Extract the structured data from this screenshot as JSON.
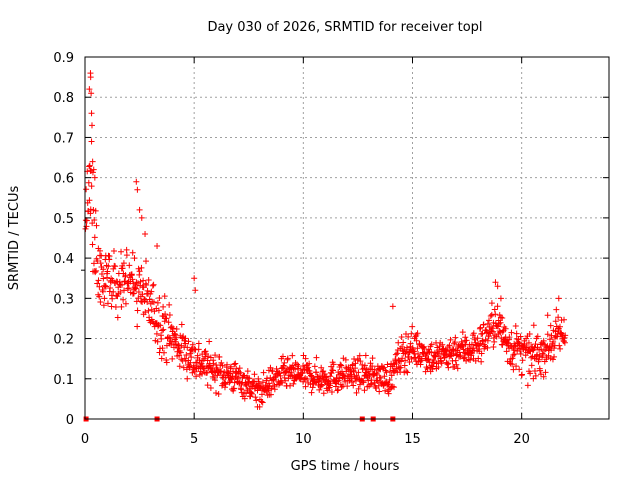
{
  "chart_data": {
    "type": "scatter",
    "title": "Day 030 of 2026, SRMTID for receiver topl",
    "xlabel": "GPS time / hours",
    "ylabel": "SRMTID / TECUs",
    "xlim": [
      0,
      24
    ],
    "ylim": [
      0,
      0.9
    ],
    "xticks": [
      0,
      5,
      10,
      15,
      20
    ],
    "yticks": [
      0,
      0.1,
      0.2,
      0.3,
      0.4,
      0.5,
      0.6,
      0.7,
      0.8,
      0.9
    ],
    "xtick_labels": [
      "0",
      "5",
      "10",
      "15",
      "20"
    ],
    "ytick_labels": [
      "0",
      "0.1",
      "0.2",
      "0.3",
      "0.4",
      "0.5",
      "0.6",
      "0.7",
      "0.8",
      "0.9"
    ],
    "grid": true,
    "marker": "+",
    "series": [
      {
        "name": "SRMTID",
        "color": "#ff0000",
        "profile": [
          {
            "x": 0.0,
            "y": 0.5,
            "spread": 0.08
          },
          {
            "x": 0.2,
            "y": 0.56,
            "spread": 0.12
          },
          {
            "x": 0.4,
            "y": 0.48,
            "spread": 0.12
          },
          {
            "x": 0.6,
            "y": 0.36,
            "spread": 0.09
          },
          {
            "x": 1.0,
            "y": 0.34,
            "spread": 0.07
          },
          {
            "x": 1.5,
            "y": 0.33,
            "spread": 0.07
          },
          {
            "x": 2.0,
            "y": 0.34,
            "spread": 0.08
          },
          {
            "x": 2.5,
            "y": 0.32,
            "spread": 0.08
          },
          {
            "x": 3.0,
            "y": 0.28,
            "spread": 0.07
          },
          {
            "x": 3.5,
            "y": 0.24,
            "spread": 0.07
          },
          {
            "x": 4.0,
            "y": 0.2,
            "spread": 0.06
          },
          {
            "x": 4.5,
            "y": 0.17,
            "spread": 0.05
          },
          {
            "x": 5.0,
            "y": 0.15,
            "spread": 0.05
          },
          {
            "x": 6.0,
            "y": 0.12,
            "spread": 0.04
          },
          {
            "x": 7.0,
            "y": 0.1,
            "spread": 0.035
          },
          {
            "x": 8.0,
            "y": 0.07,
            "spread": 0.03
          },
          {
            "x": 9.0,
            "y": 0.11,
            "spread": 0.035
          },
          {
            "x": 10.0,
            "y": 0.11,
            "spread": 0.035
          },
          {
            "x": 11.0,
            "y": 0.1,
            "spread": 0.035
          },
          {
            "x": 12.0,
            "y": 0.11,
            "spread": 0.035
          },
          {
            "x": 13.0,
            "y": 0.11,
            "spread": 0.035
          },
          {
            "x": 14.0,
            "y": 0.1,
            "spread": 0.035
          },
          {
            "x": 14.5,
            "y": 0.16,
            "spread": 0.045
          },
          {
            "x": 15.0,
            "y": 0.18,
            "spread": 0.04
          },
          {
            "x": 16.0,
            "y": 0.15,
            "spread": 0.04
          },
          {
            "x": 17.0,
            "y": 0.17,
            "spread": 0.04
          },
          {
            "x": 18.0,
            "y": 0.18,
            "spread": 0.04
          },
          {
            "x": 18.8,
            "y": 0.24,
            "spread": 0.05
          },
          {
            "x": 19.5,
            "y": 0.18,
            "spread": 0.05
          },
          {
            "x": 20.5,
            "y": 0.15,
            "spread": 0.05
          },
          {
            "x": 21.0,
            "y": 0.17,
            "spread": 0.05
          },
          {
            "x": 21.5,
            "y": 0.2,
            "spread": 0.05
          },
          {
            "x": 22.0,
            "y": 0.21,
            "spread": 0.05
          }
        ],
        "x_start": 0.0,
        "x_end": 22.0,
        "n_points": 1300,
        "outliers": [
          {
            "x": 0.25,
            "y": 0.86
          },
          {
            "x": 0.26,
            "y": 0.85
          },
          {
            "x": 0.2,
            "y": 0.82
          },
          {
            "x": 0.28,
            "y": 0.81
          },
          {
            "x": 0.3,
            "y": 0.76
          },
          {
            "x": 0.32,
            "y": 0.73
          },
          {
            "x": 0.3,
            "y": 0.69
          },
          {
            "x": 0.35,
            "y": 0.64
          },
          {
            "x": 0.4,
            "y": 0.62
          },
          {
            "x": 0.45,
            "y": 0.6
          },
          {
            "x": 2.35,
            "y": 0.59
          },
          {
            "x": 2.4,
            "y": 0.57
          },
          {
            "x": 2.5,
            "y": 0.52
          },
          {
            "x": 2.6,
            "y": 0.5
          },
          {
            "x": 2.75,
            "y": 0.46
          },
          {
            "x": 3.3,
            "y": 0.43
          },
          {
            "x": 5.0,
            "y": 0.35
          },
          {
            "x": 5.05,
            "y": 0.32
          },
          {
            "x": 18.8,
            "y": 0.34
          },
          {
            "x": 18.9,
            "y": 0.33
          },
          {
            "x": 19.05,
            "y": 0.3
          },
          {
            "x": 21.7,
            "y": 0.3
          },
          {
            "x": 14.1,
            "y": 0.28
          },
          {
            "x": 7.9,
            "y": 0.03
          },
          {
            "x": 8.0,
            "y": 0.03
          }
        ]
      }
    ],
    "axis_markers": [
      {
        "x": 0.05,
        "y": 0.0
      },
      {
        "x": 3.3,
        "y": 0.0
      },
      {
        "x": 12.7,
        "y": 0.0
      },
      {
        "x": 13.2,
        "y": 0.0
      },
      {
        "x": 14.1,
        "y": 0.0
      }
    ]
  }
}
